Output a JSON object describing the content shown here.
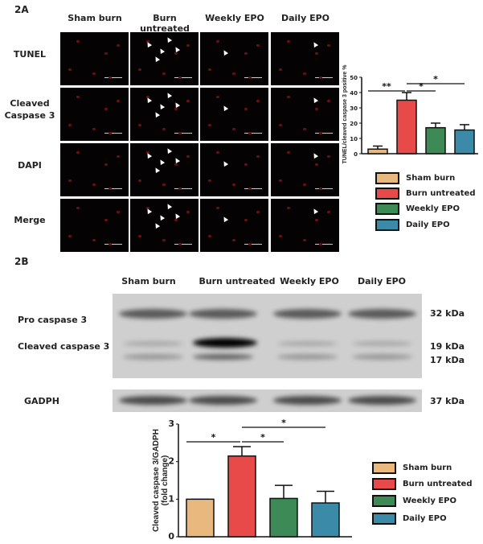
{
  "panel_a": {
    "label": "2A",
    "columns": [
      "Sham burn",
      "Burn untreated",
      "Weekly EPO",
      "Daily EPO"
    ],
    "rows": [
      "TUNEL",
      "Cleaved Caspase 3",
      "DAPI",
      "Merge"
    ]
  },
  "panel_b": {
    "label": "2B",
    "columns": [
      "Sham burn",
      "Burn untreated",
      "Weekly EPO",
      "Daily EPO"
    ],
    "left_labels": [
      "Pro caspase 3",
      "Cleaved caspase 3",
      "GADPH"
    ],
    "right_labels": [
      "32 kDa",
      "19 kDa",
      "17 kDa",
      "37 kDa"
    ]
  },
  "chart_data": [
    {
      "type": "bar",
      "categories": [
        "Sham burn",
        "Burn untreated",
        "Weekly EPO",
        "Daily EPO"
      ],
      "values": [
        3,
        35,
        17,
        15.5
      ],
      "error_upper": [
        5,
        40,
        20,
        19
      ],
      "colors": [
        "#e8b87f",
        "#e84a4a",
        "#3d8a57",
        "#3a8aa8"
      ],
      "ylabel": "TUNEL/cleaved caspase 3 positive %",
      "ylim": [
        0,
        50
      ],
      "yticks": [
        "0",
        "10",
        "20",
        "30",
        "40",
        "50"
      ],
      "significance": [
        {
          "from": 0,
          "to": 1,
          "label": "**"
        },
        {
          "from": 1,
          "to": 2,
          "label": "*"
        },
        {
          "from": 1,
          "to": 3,
          "label": "*"
        }
      ],
      "legend": [
        "Sham burn",
        "Burn untreated",
        "Weekly EPO",
        "Daily EPO"
      ],
      "legend_position": "bottom"
    },
    {
      "type": "bar",
      "categories": [
        "Sham burn",
        "Burn untreated",
        "Weekly EPO",
        "Daily EPO"
      ],
      "values": [
        1.0,
        2.15,
        1.02,
        0.9
      ],
      "error_upper": [
        1.0,
        2.4,
        1.37,
        1.21
      ],
      "colors": [
        "#e8b87f",
        "#e84a4a",
        "#3d8a57",
        "#3a8aa8"
      ],
      "ylabel": "Cleaved caspase 3/GADPH (fold change)",
      "ylim": [
        0,
        3
      ],
      "yticks": [
        "0",
        "1",
        "2",
        "3"
      ],
      "significance": [
        {
          "from": 0,
          "to": 1,
          "label": "*"
        },
        {
          "from": 1,
          "to": 2,
          "label": "*"
        },
        {
          "from": 1,
          "to": 3,
          "label": "*"
        }
      ],
      "legend": [
        "Sham burn",
        "Burn untreated",
        "Weekly EPO",
        "Daily EPO"
      ],
      "legend_position": "right"
    }
  ]
}
